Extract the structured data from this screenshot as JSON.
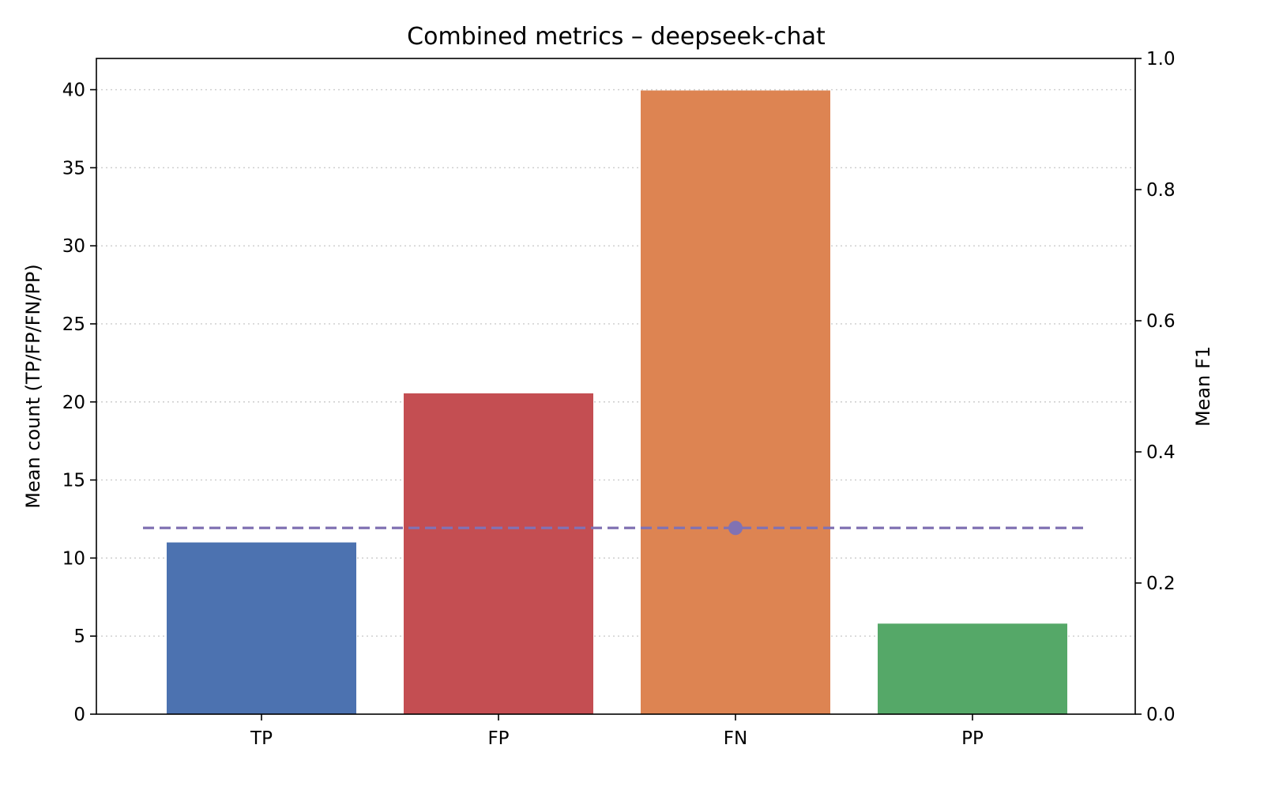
{
  "chart_data": {
    "type": "bar",
    "title": "Combined metrics – deepseek-chat",
    "xlabel": "",
    "ylabel": "Mean count (TP/FP/FN/PP)",
    "y2label": "Mean F1",
    "categories": [
      "TP",
      "FP",
      "FN",
      "PP"
    ],
    "values": [
      11.0,
      20.55,
      39.95,
      5.8
    ],
    "colors": [
      "#4c72b0",
      "#c44e52",
      "#dd8452",
      "#55a868"
    ],
    "ylim": [
      0,
      42
    ],
    "yticks": [
      0,
      5,
      10,
      15,
      20,
      25,
      30,
      35,
      40
    ],
    "y2lim": [
      0,
      1.0
    ],
    "y2ticks": [
      "0.0",
      "0.2",
      "0.4",
      "0.6",
      "0.8",
      "1.0"
    ],
    "grid": "y-dotted",
    "f1": {
      "value": 0.284,
      "at_category": "FN",
      "style": "dashed",
      "color": "#8172b3"
    }
  }
}
